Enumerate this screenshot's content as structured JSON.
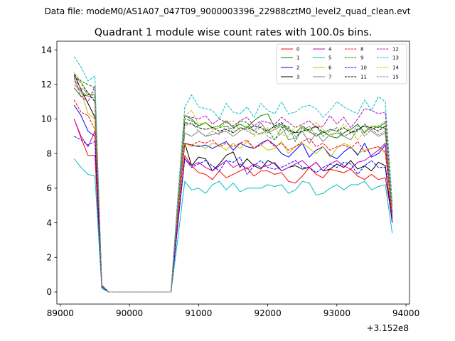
{
  "suptitle": "Data file: modeM0/AS1A07_047T09_9000003396_22988cztM0_level2_quad_clean.evt",
  "chart_data": {
    "type": "line",
    "title": "Quadrant 1 module wise count rates with 100.0s bins.",
    "xlabel": "",
    "ylabel": "",
    "offset_text": "+3.152e8",
    "xlim": [
      88950,
      94050
    ],
    "ylim": [
      -0.7,
      14.5
    ],
    "x_ticks": [
      89000,
      90000,
      91000,
      92000,
      93000,
      94000
    ],
    "x_tick_labels": [
      "89000",
      "90000",
      "91000",
      "92000",
      "93000",
      "94000"
    ],
    "y_ticks": [
      0,
      2,
      4,
      6,
      8,
      10,
      12,
      14
    ],
    "y_tick_labels": [
      "0",
      "2",
      "4",
      "6",
      "8",
      "10",
      "12",
      "14"
    ],
    "grid": false,
    "legend_placement": "top-right",
    "x": [
      89200,
      89300,
      89400,
      89500,
      89600,
      89700,
      89800,
      89900,
      90000,
      90100,
      90200,
      90300,
      90400,
      90500,
      90600,
      90700,
      90800,
      90900,
      91000,
      91100,
      91200,
      91300,
      91400,
      91500,
      91600,
      91700,
      91800,
      91900,
      92000,
      92100,
      92200,
      92300,
      92400,
      92500,
      92600,
      92700,
      92800,
      92900,
      93000,
      93100,
      93200,
      93300,
      93400,
      93500,
      93600,
      93700,
      93800
    ],
    "series": [
      {
        "name": "0",
        "color": "#ff0000",
        "dash": "solid",
        "values": [
          10.0,
          8.9,
          7.9,
          7.9,
          0.3,
          0.0,
          0.0,
          0.0,
          0.0,
          0.0,
          0.0,
          0.0,
          0.0,
          0.0,
          0.0,
          4.0,
          7.9,
          7.3,
          6.9,
          6.8,
          6.5,
          7.0,
          6.6,
          6.8,
          7.0,
          7.2,
          6.7,
          7.0,
          7.0,
          6.8,
          6.9,
          6.4,
          6.3,
          6.7,
          7.2,
          6.8,
          6.6,
          7.1,
          7.0,
          6.9,
          7.1,
          6.7,
          6.5,
          6.8,
          6.5,
          6.6,
          4.2
        ]
      },
      {
        "name": "1",
        "color": "#008000",
        "dash": "solid",
        "values": [
          11.8,
          11.3,
          11.4,
          11.4,
          0.4,
          0.0,
          0.0,
          0.0,
          0.0,
          0.0,
          0.0,
          0.0,
          0.0,
          0.0,
          0.0,
          5.0,
          10.2,
          10.0,
          9.6,
          9.8,
          9.5,
          9.6,
          9.9,
          9.5,
          9.7,
          9.5,
          9.9,
          10.2,
          10.3,
          9.5,
          9.7,
          9.3,
          9.2,
          9.6,
          9.3,
          9.0,
          9.3,
          9.0,
          8.9,
          9.2,
          9.4,
          9.7,
          9.2,
          9.6,
          9.5,
          9.8,
          4.5
        ]
      },
      {
        "name": "2",
        "color": "#0000ff",
        "dash": "solid",
        "values": [
          10.8,
          10.2,
          9.3,
          9.0,
          0.3,
          0.0,
          0.0,
          0.0,
          0.0,
          0.0,
          0.0,
          0.0,
          0.0,
          0.0,
          0.0,
          4.5,
          8.6,
          8.5,
          8.4,
          8.5,
          8.3,
          8.5,
          8.7,
          8.2,
          8.6,
          8.4,
          8.3,
          8.6,
          8.8,
          8.5,
          8.0,
          7.8,
          8.2,
          8.6,
          7.8,
          8.2,
          8.4,
          7.9,
          7.7,
          8.1,
          8.4,
          7.9,
          8.6,
          7.8,
          8.0,
          8.5,
          4.3
        ]
      },
      {
        "name": "3",
        "color": "#000000",
        "dash": "solid",
        "values": [
          12.6,
          11.7,
          10.9,
          10.1,
          0.3,
          0.0,
          0.0,
          0.0,
          0.0,
          0.0,
          0.0,
          0.0,
          0.0,
          0.0,
          0.0,
          4.6,
          8.6,
          7.3,
          7.8,
          7.7,
          7.0,
          7.4,
          7.9,
          8.1,
          7.2,
          7.7,
          7.3,
          7.1,
          7.6,
          7.4,
          7.0,
          7.2,
          7.3,
          7.1,
          7.2,
          7.5,
          7.0,
          7.1,
          7.4,
          7.2,
          7.6,
          7.1,
          7.3,
          7.0,
          7.5,
          7.3,
          4.0
        ]
      },
      {
        "name": "4",
        "color": "#bf00bf",
        "dash": "solid",
        "values": [
          10.0,
          9.0,
          8.4,
          9.3,
          0.3,
          0.0,
          0.0,
          0.0,
          0.0,
          0.0,
          0.0,
          0.0,
          0.0,
          0.0,
          0.0,
          3.9,
          7.7,
          7.3,
          7.5,
          7.2,
          7.0,
          7.3,
          7.6,
          7.2,
          7.4,
          7.1,
          7.4,
          7.2,
          7.3,
          7.5,
          7.0,
          7.2,
          7.4,
          7.6,
          7.2,
          7.5,
          7.0,
          7.4,
          7.6,
          7.3,
          7.1,
          7.5,
          7.6,
          7.9,
          8.2,
          8.6,
          4.1
        ]
      },
      {
        "name": "5",
        "color": "#00bfbf",
        "dash": "solid",
        "values": [
          7.7,
          7.2,
          6.8,
          6.7,
          0.2,
          0.0,
          0.0,
          0.0,
          0.0,
          0.0,
          0.0,
          0.0,
          0.0,
          0.0,
          0.0,
          3.1,
          6.4,
          5.9,
          6.0,
          5.7,
          6.2,
          6.4,
          5.9,
          6.3,
          5.8,
          6.0,
          6.0,
          6.0,
          6.2,
          6.1,
          6.2,
          5.7,
          5.9,
          6.4,
          6.3,
          5.6,
          5.7,
          6.0,
          6.2,
          5.9,
          6.2,
          6.2,
          6.4,
          5.9,
          6.1,
          6.2,
          3.4
        ]
      },
      {
        "name": "6",
        "color": "#bfbf00",
        "dash": "solid",
        "values": [
          12.2,
          11.6,
          10.3,
          10.0,
          0.3,
          0.0,
          0.0,
          0.0,
          0.0,
          0.0,
          0.0,
          0.0,
          0.0,
          0.0,
          0.0,
          4.5,
          8.6,
          8.4,
          8.5,
          8.3,
          8.6,
          8.5,
          8.2,
          8.6,
          8.3,
          8.7,
          8.3,
          8.5,
          8.2,
          8.3,
          8.7,
          8.0,
          8.4,
          8.6,
          8.3,
          8.0,
          8.4,
          7.8,
          8.3,
          8.6,
          8.4,
          8.0,
          8.2,
          8.3,
          8.4,
          8.0,
          4.5
        ]
      },
      {
        "name": "7",
        "color": "#808080",
        "dash": "solid",
        "values": [
          12.0,
          11.6,
          11.3,
          11.2,
          0.3,
          0.0,
          0.0,
          0.0,
          0.0,
          0.0,
          0.0,
          0.0,
          0.0,
          0.0,
          0.0,
          4.8,
          9.2,
          9.0,
          9.3,
          9.0,
          9.1,
          9.2,
          9.3,
          9.0,
          9.3,
          9.6,
          9.3,
          9.8,
          9.2,
          9.4,
          9.6,
          8.8,
          8.9,
          9.3,
          8.6,
          9.2,
          8.7,
          9.1,
          9.2,
          9.0,
          8.8,
          9.4,
          9.6,
          9.3,
          9.0,
          9.2,
          4.6
        ]
      },
      {
        "name": "8",
        "color": "#ff0000",
        "dash": "dashed",
        "values": [
          11.1,
          10.4,
          10.2,
          9.4,
          0.3,
          0.0,
          0.0,
          0.0,
          0.0,
          0.0,
          0.0,
          0.0,
          0.0,
          0.0,
          0.0,
          4.4,
          8.6,
          8.5,
          8.7,
          8.6,
          8.8,
          8.4,
          8.6,
          8.4,
          8.6,
          8.8,
          8.3,
          8.5,
          8.8,
          8.4,
          8.6,
          8.2,
          8.4,
          8.7,
          8.9,
          8.4,
          8.6,
          8.2,
          8.4,
          8.5,
          8.3,
          8.7,
          8.1,
          8.3,
          8.4,
          8.1,
          4.3
        ]
      },
      {
        "name": "9",
        "color": "#008000",
        "dash": "dashed",
        "values": [
          12.6,
          12.2,
          12.0,
          11.8,
          0.4,
          0.0,
          0.0,
          0.0,
          0.0,
          0.0,
          0.0,
          0.0,
          0.0,
          0.0,
          0.0,
          5.2,
          10.0,
          9.9,
          9.6,
          9.8,
          9.4,
          9.5,
          9.6,
          9.4,
          9.9,
          9.8,
          9.3,
          9.1,
          9.4,
          8.8,
          9.5,
          9.6,
          8.7,
          9.5,
          9.3,
          9.6,
          9.0,
          9.3,
          9.5,
          9.0,
          9.2,
          9.3,
          9.7,
          9.4,
          9.6,
          9.4,
          4.6
        ]
      },
      {
        "name": "10",
        "color": "#0000ff",
        "dash": "dashed",
        "values": [
          9.0,
          8.8,
          8.5,
          8.7,
          0.3,
          0.0,
          0.0,
          0.0,
          0.0,
          0.0,
          0.0,
          0.0,
          0.0,
          0.0,
          0.0,
          4.0,
          7.7,
          7.2,
          7.4,
          7.6,
          7.3,
          7.0,
          7.6,
          7.5,
          7.8,
          6.8,
          7.3,
          7.6,
          7.2,
          7.1,
          7.2,
          7.4,
          7.6,
          7.2,
          7.2,
          6.9,
          7.2,
          7.4,
          7.2,
          7.5,
          7.4,
          6.8,
          7.3,
          7.6,
          7.2,
          7.2,
          4.0
        ]
      },
      {
        "name": "11",
        "color": "#000000",
        "dash": "dashed",
        "values": [
          12.5,
          12.1,
          11.5,
          11.0,
          0.4,
          0.0,
          0.0,
          0.0,
          0.0,
          0.0,
          0.0,
          0.0,
          0.0,
          0.0,
          0.0,
          5.0,
          9.8,
          9.7,
          9.5,
          9.4,
          9.5,
          9.3,
          9.4,
          9.2,
          9.5,
          9.4,
          9.6,
          9.5,
          9.3,
          9.6,
          9.8,
          9.4,
          9.2,
          9.3,
          9.4,
          9.6,
          9.2,
          9.4,
          9.3,
          9.5,
          9.2,
          9.4,
          9.6,
          9.5,
          9.3,
          9.6,
          4.6
        ]
      },
      {
        "name": "12",
        "color": "#bf00bf",
        "dash": "dashed",
        "values": [
          12.4,
          11.3,
          11.0,
          11.9,
          0.4,
          0.0,
          0.0,
          0.0,
          0.0,
          0.0,
          0.0,
          0.0,
          0.0,
          0.0,
          0.0,
          5.2,
          10.2,
          10.1,
          10.0,
          10.2,
          9.7,
          10.0,
          9.8,
          9.6,
          9.9,
          10.1,
          9.6,
          9.9,
          9.8,
          9.7,
          10.1,
          9.8,
          9.5,
          9.7,
          9.9,
          9.5,
          9.6,
          10.2,
          9.7,
          10.1,
          9.5,
          10.0,
          10.6,
          10.5,
          10.3,
          10.4,
          5.0
        ]
      },
      {
        "name": "13",
        "color": "#00bfbf",
        "dash": "dashed",
        "values": [
          13.6,
          13.0,
          12.2,
          12.5,
          0.4,
          0.0,
          0.0,
          0.0,
          0.0,
          0.0,
          0.0,
          0.0,
          0.0,
          0.0,
          0.0,
          5.6,
          10.7,
          11.4,
          10.7,
          10.6,
          10.5,
          10.0,
          10.9,
          10.4,
          10.3,
          10.7,
          10.1,
          10.9,
          10.5,
          10.3,
          11.0,
          10.3,
          10.4,
          10.7,
          10.8,
          10.6,
          10.1,
          10.5,
          11.0,
          10.7,
          10.5,
          10.3,
          11.1,
          10.5,
          11.3,
          11.0,
          5.2
        ]
      },
      {
        "name": "14",
        "color": "#bfbf00",
        "dash": "dashed",
        "values": [
          12.7,
          12.1,
          11.3,
          11.6,
          0.4,
          0.0,
          0.0,
          0.0,
          0.0,
          0.0,
          0.0,
          0.0,
          0.0,
          0.0,
          0.0,
          5.1,
          10.2,
          10.5,
          9.7,
          9.8,
          9.4,
          9.5,
          9.8,
          9.9,
          9.3,
          9.6,
          9.0,
          9.2,
          9.5,
          9.4,
          9.1,
          9.0,
          9.6,
          9.5,
          9.2,
          9.8,
          9.4,
          9.0,
          9.2,
          9.7,
          9.3,
          8.8,
          9.3,
          9.6,
          9.6,
          9.9,
          4.7
        ]
      },
      {
        "name": "15",
        "color": "#808080",
        "dash": "dashed",
        "values": [
          12.3,
          11.8,
          11.5,
          11.3,
          0.4,
          0.0,
          0.0,
          0.0,
          0.0,
          0.0,
          0.0,
          0.0,
          0.0,
          0.0,
          0.0,
          4.9,
          9.6,
          9.8,
          9.3,
          9.0,
          9.3,
          9.1,
          9.6,
          9.2,
          9.5,
          9.3,
          9.1,
          9.6,
          9.0,
          8.8,
          9.2,
          9.5,
          9.0,
          9.3,
          9.6,
          9.0,
          9.2,
          9.4,
          9.3,
          9.0,
          9.2,
          9.6,
          9.0,
          9.4,
          9.1,
          9.3,
          4.5
        ]
      }
    ]
  }
}
